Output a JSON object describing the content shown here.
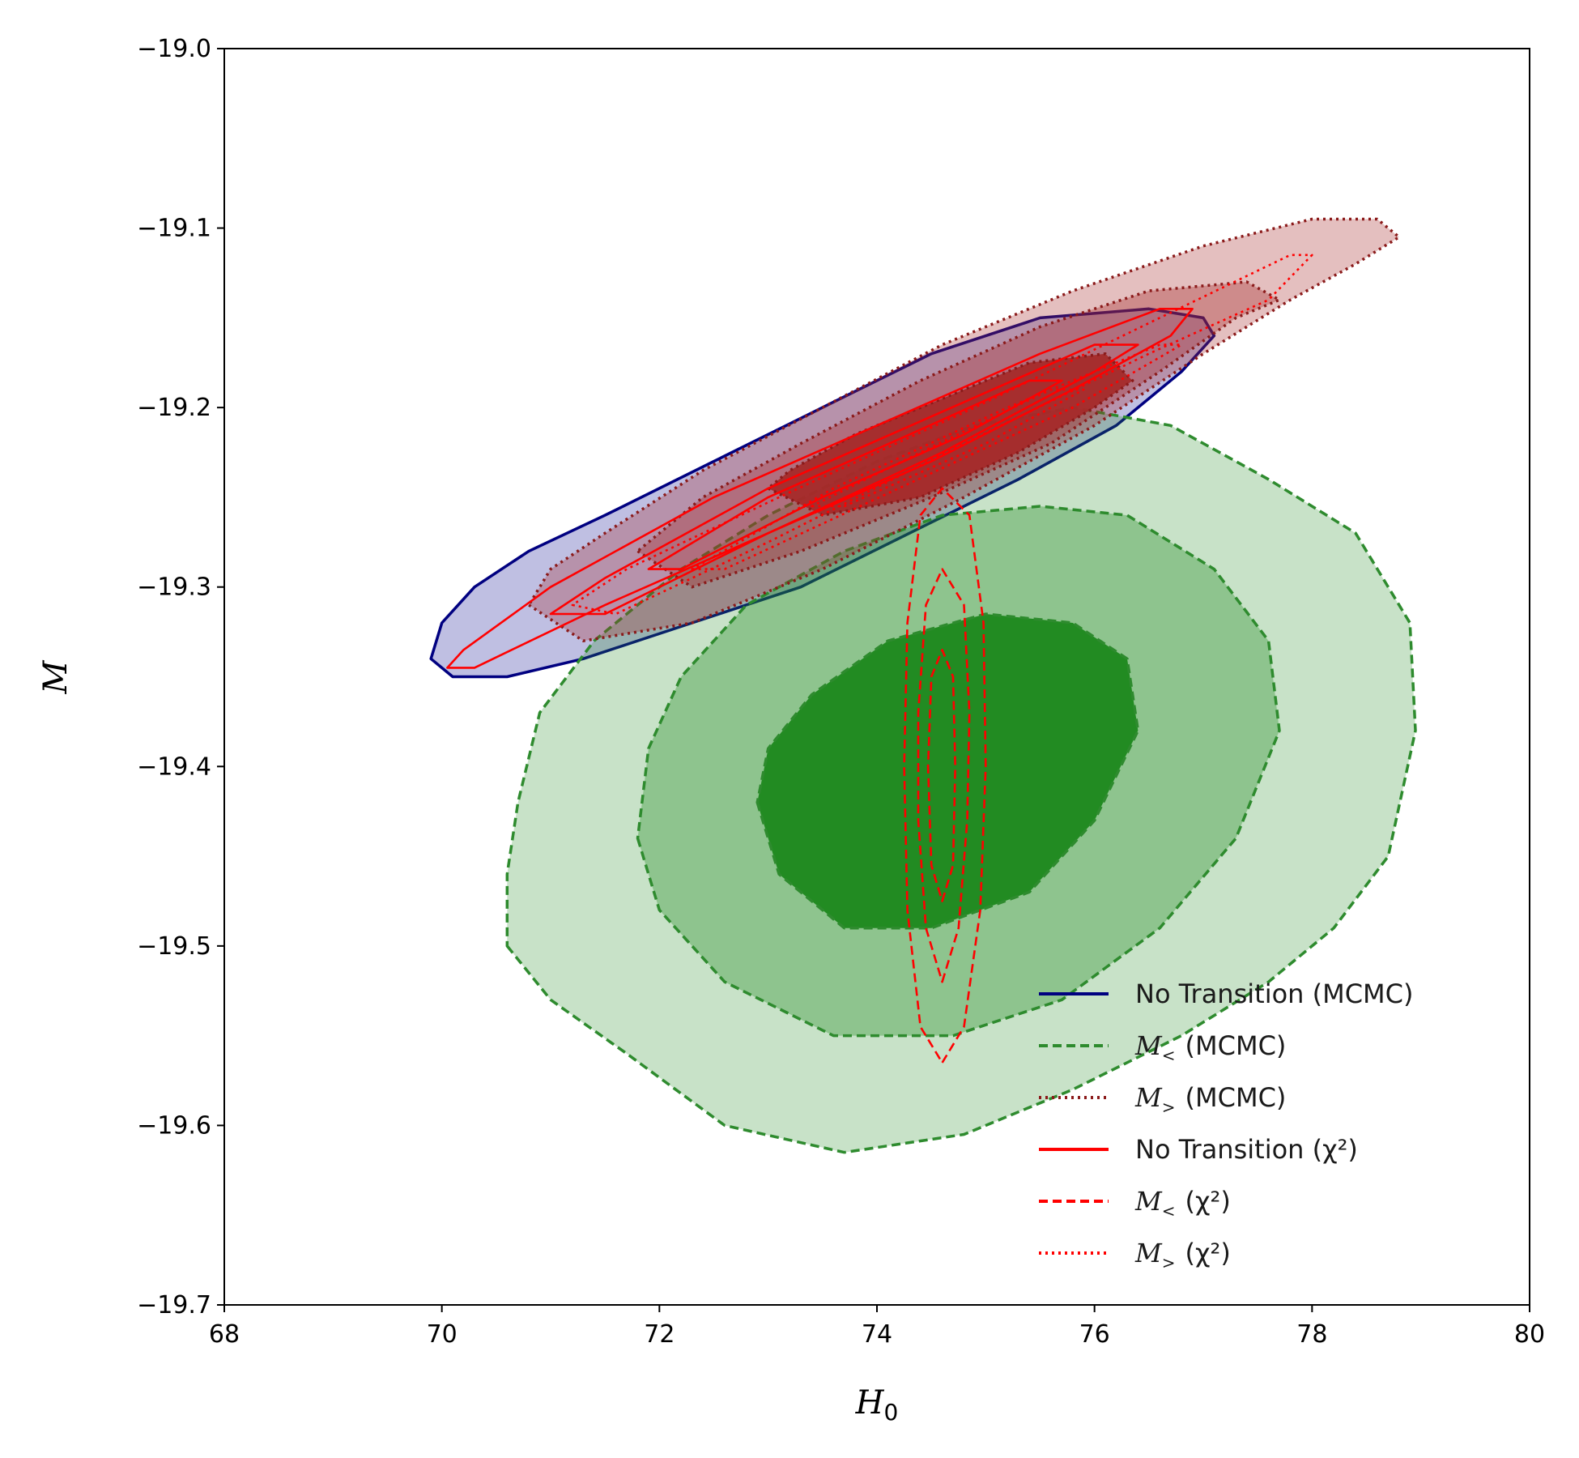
{
  "chart_data": {
    "type": "contour",
    "xlabel": "H",
    "xlabel_sub": "0",
    "ylabel": "M",
    "xlim": [
      68,
      80
    ],
    "ylim": [
      -19.7,
      -19.0
    ],
    "xticks": [
      68,
      70,
      72,
      74,
      76,
      78,
      80
    ],
    "xtick_labels": [
      "68",
      "70",
      "72",
      "74",
      "76",
      "78",
      "80"
    ],
    "yticks": [
      -19.0,
      -19.1,
      -19.2,
      -19.3,
      -19.4,
      -19.5,
      -19.6,
      -19.7
    ],
    "ytick_labels": [
      "−19.0",
      "−19.1",
      "−19.2",
      "−19.3",
      "−19.4",
      "−19.5",
      "−19.6",
      "−19.7"
    ],
    "grid": false,
    "legend_position": "lower-right",
    "series": [
      {
        "legend_symbol": "",
        "legend_sub": "",
        "legend_text": "No Transition (MCMC)",
        "line_color": "#000080",
        "fill_color": "#00008b",
        "line_style": "solid",
        "filled": true,
        "fill_opacity": [
          0.25
        ],
        "contours": [
          [
            [
              69.9,
              -19.34
            ],
            [
              70.1,
              -19.35
            ],
            [
              70.6,
              -19.35
            ],
            [
              71.3,
              -19.34
            ],
            [
              72.3,
              -19.32
            ],
            [
              73.3,
              -19.3
            ],
            [
              74.3,
              -19.27
            ],
            [
              75.3,
              -19.24
            ],
            [
              76.2,
              -19.21
            ],
            [
              76.8,
              -19.18
            ],
            [
              77.1,
              -19.16
            ],
            [
              77.0,
              -19.15
            ],
            [
              76.5,
              -19.145
            ],
            [
              75.5,
              -19.15
            ],
            [
              74.5,
              -19.17
            ],
            [
              73.5,
              -19.2
            ],
            [
              72.5,
              -19.23
            ],
            [
              71.5,
              -19.26
            ],
            [
              70.8,
              -19.28
            ],
            [
              70.3,
              -19.3
            ],
            [
              70.0,
              -19.32
            ]
          ]
        ]
      },
      {
        "legend_symbol": "M",
        "legend_sub": "<",
        "legend_text": "(MCMC)",
        "line_color": "#2e8b2e",
        "fill_color": "#228b22",
        "line_style": "dashed",
        "filled": true,
        "fill_opacity": [
          0.25,
          0.35,
          1.0
        ],
        "contours": [
          [
            [
              70.6,
              -19.5
            ],
            [
              71.0,
              -19.53
            ],
            [
              71.7,
              -19.56
            ],
            [
              72.6,
              -19.6
            ],
            [
              73.7,
              -19.615
            ],
            [
              74.8,
              -19.605
            ],
            [
              75.8,
              -19.58
            ],
            [
              76.8,
              -19.55
            ],
            [
              77.6,
              -19.52
            ],
            [
              78.2,
              -19.49
            ],
            [
              78.7,
              -19.45
            ],
            [
              78.95,
              -19.38
            ],
            [
              78.9,
              -19.32
            ],
            [
              78.4,
              -19.27
            ],
            [
              77.6,
              -19.24
            ],
            [
              76.7,
              -19.21
            ],
            [
              75.8,
              -19.2
            ],
            [
              74.9,
              -19.21
            ],
            [
              74.0,
              -19.23
            ],
            [
              73.0,
              -19.26
            ],
            [
              72.2,
              -19.29
            ],
            [
              71.4,
              -19.33
            ],
            [
              70.9,
              -19.37
            ],
            [
              70.7,
              -19.42
            ],
            [
              70.6,
              -19.46
            ]
          ],
          [
            [
              71.8,
              -19.44
            ],
            [
              72.0,
              -19.48
            ],
            [
              72.6,
              -19.52
            ],
            [
              73.6,
              -19.55
            ],
            [
              74.7,
              -19.55
            ],
            [
              75.7,
              -19.53
            ],
            [
              76.6,
              -19.49
            ],
            [
              77.3,
              -19.44
            ],
            [
              77.7,
              -19.38
            ],
            [
              77.6,
              -19.33
            ],
            [
              77.1,
              -19.29
            ],
            [
              76.3,
              -19.26
            ],
            [
              75.5,
              -19.255
            ],
            [
              74.6,
              -19.26
            ],
            [
              73.7,
              -19.28
            ],
            [
              72.8,
              -19.31
            ],
            [
              72.2,
              -19.35
            ],
            [
              71.9,
              -19.39
            ]
          ],
          [
            [
              72.9,
              -19.42
            ],
            [
              73.1,
              -19.46
            ],
            [
              73.7,
              -19.49
            ],
            [
              74.5,
              -19.49
            ],
            [
              75.4,
              -19.47
            ],
            [
              76.0,
              -19.43
            ],
            [
              76.4,
              -19.38
            ],
            [
              76.3,
              -19.34
            ],
            [
              75.8,
              -19.32
            ],
            [
              75.0,
              -19.315
            ],
            [
              74.1,
              -19.33
            ],
            [
              73.4,
              -19.36
            ],
            [
              73.0,
              -19.39
            ]
          ]
        ]
      },
      {
        "legend_symbol": "M",
        "legend_sub": ">",
        "legend_text": "(MCMC)",
        "line_color": "#8b1a1a",
        "fill_color": "#a52a2a",
        "line_style": "dotted",
        "filled": true,
        "fill_opacity": [
          0.3,
          0.35,
          0.95
        ],
        "contours": [
          [
            [
              70.8,
              -19.31
            ],
            [
              71.3,
              -19.33
            ],
            [
              72.3,
              -19.32
            ],
            [
              73.5,
              -19.29
            ],
            [
              74.8,
              -19.25
            ],
            [
              76.0,
              -19.21
            ],
            [
              77.0,
              -19.17
            ],
            [
              77.8,
              -19.14
            ],
            [
              78.4,
              -19.12
            ],
            [
              78.8,
              -19.105
            ],
            [
              78.6,
              -19.095
            ],
            [
              78.0,
              -19.095
            ],
            [
              77.0,
              -19.11
            ],
            [
              75.8,
              -19.135
            ],
            [
              74.6,
              -19.165
            ],
            [
              73.5,
              -19.2
            ],
            [
              72.4,
              -19.235
            ],
            [
              71.5,
              -19.27
            ],
            [
              71.0,
              -19.29
            ]
          ],
          [
            [
              71.8,
              -19.28
            ],
            [
              72.3,
              -19.3
            ],
            [
              73.3,
              -19.28
            ],
            [
              74.5,
              -19.25
            ],
            [
              75.6,
              -19.22
            ],
            [
              76.6,
              -19.18
            ],
            [
              77.3,
              -19.15
            ],
            [
              77.7,
              -19.14
            ],
            [
              77.4,
              -19.13
            ],
            [
              76.5,
              -19.135
            ],
            [
              75.5,
              -19.155
            ],
            [
              74.4,
              -19.185
            ],
            [
              73.3,
              -19.22
            ],
            [
              72.4,
              -19.25
            ]
          ],
          [
            [
              73.0,
              -19.245
            ],
            [
              73.5,
              -19.26
            ],
            [
              74.4,
              -19.25
            ],
            [
              75.3,
              -19.225
            ],
            [
              76.0,
              -19.2
            ],
            [
              76.35,
              -19.185
            ],
            [
              76.1,
              -19.17
            ],
            [
              75.4,
              -19.175
            ],
            [
              74.6,
              -19.195
            ],
            [
              73.8,
              -19.215
            ],
            [
              73.2,
              -19.235
            ]
          ]
        ]
      },
      {
        "legend_symbol": "",
        "legend_sub": "",
        "legend_text": "No Transition (χ²)",
        "line_color": "#ff0000",
        "fill_color": "none",
        "line_style": "solid",
        "filled": false,
        "contours": [
          [
            [
              70.05,
              -19.345
            ],
            [
              70.3,
              -19.345
            ],
            [
              71.5,
              -19.31
            ],
            [
              73.0,
              -19.27
            ],
            [
              74.5,
              -19.23
            ],
            [
              75.8,
              -19.19
            ],
            [
              76.7,
              -19.16
            ],
            [
              76.9,
              -19.145
            ],
            [
              76.6,
              -19.145
            ],
            [
              75.5,
              -19.17
            ],
            [
              74.0,
              -19.21
            ],
            [
              72.5,
              -19.25
            ],
            [
              71.0,
              -19.3
            ],
            [
              70.2,
              -19.335
            ]
          ],
          [
            [
              71.0,
              -19.315
            ],
            [
              71.5,
              -19.315
            ],
            [
              73.0,
              -19.27
            ],
            [
              74.6,
              -19.225
            ],
            [
              76.0,
              -19.18
            ],
            [
              76.4,
              -19.165
            ],
            [
              76.0,
              -19.165
            ],
            [
              74.5,
              -19.205
            ],
            [
              73.0,
              -19.245
            ],
            [
              71.5,
              -19.295
            ]
          ],
          [
            [
              71.9,
              -19.29
            ],
            [
              72.2,
              -19.29
            ],
            [
              73.5,
              -19.25
            ],
            [
              74.8,
              -19.215
            ],
            [
              75.7,
              -19.185
            ],
            [
              75.4,
              -19.185
            ],
            [
              74.3,
              -19.215
            ],
            [
              73.0,
              -19.25
            ]
          ]
        ]
      },
      {
        "legend_symbol": "M",
        "legend_sub": "<",
        "legend_text": "(χ²)",
        "line_color": "#ff0000",
        "fill_color": "none",
        "line_style": "dashed",
        "filled": false,
        "contours": [
          [
            [
              74.6,
              -19.565
            ],
            [
              74.8,
              -19.545
            ],
            [
              74.95,
              -19.48
            ],
            [
              75.0,
              -19.4
            ],
            [
              74.98,
              -19.32
            ],
            [
              74.85,
              -19.26
            ],
            [
              74.6,
              -19.245
            ],
            [
              74.4,
              -19.26
            ],
            [
              74.28,
              -19.32
            ],
            [
              74.25,
              -19.4
            ],
            [
              74.28,
              -19.48
            ],
            [
              74.4,
              -19.545
            ]
          ],
          [
            [
              74.6,
              -19.52
            ],
            [
              74.75,
              -19.49
            ],
            [
              74.83,
              -19.43
            ],
            [
              74.85,
              -19.37
            ],
            [
              74.8,
              -19.31
            ],
            [
              74.6,
              -19.29
            ],
            [
              74.45,
              -19.31
            ],
            [
              74.38,
              -19.37
            ],
            [
              74.38,
              -19.43
            ],
            [
              74.45,
              -19.49
            ]
          ],
          [
            [
              74.6,
              -19.475
            ],
            [
              74.7,
              -19.455
            ],
            [
              74.72,
              -19.4
            ],
            [
              74.7,
              -19.35
            ],
            [
              74.6,
              -19.335
            ],
            [
              74.5,
              -19.35
            ],
            [
              74.47,
              -19.4
            ],
            [
              74.5,
              -19.455
            ]
          ]
        ]
      },
      {
        "legend_symbol": "M",
        "legend_sub": ">",
        "legend_text": "(χ²)",
        "line_color": "#ff0000",
        "fill_color": "none",
        "line_style": "dotted",
        "filled": false,
        "contours": [
          [
            [
              71.2,
              -19.31
            ],
            [
              71.6,
              -19.315
            ],
            [
              73.0,
              -19.275
            ],
            [
              74.8,
              -19.22
            ],
            [
              76.5,
              -19.17
            ],
            [
              77.6,
              -19.14
            ],
            [
              78.0,
              -19.115
            ],
            [
              77.8,
              -19.115
            ],
            [
              76.6,
              -19.15
            ],
            [
              74.9,
              -19.2
            ],
            [
              73.1,
              -19.25
            ],
            [
              71.7,
              -19.29
            ]
          ],
          [
            [
              72.3,
              -19.29
            ],
            [
              72.6,
              -19.29
            ],
            [
              74.2,
              -19.245
            ],
            [
              75.8,
              -19.2
            ],
            [
              76.8,
              -19.165
            ],
            [
              76.6,
              -19.165
            ],
            [
              75.2,
              -19.2
            ],
            [
              73.6,
              -19.245
            ]
          ],
          [
            [
              73.4,
              -19.255
            ],
            [
              73.7,
              -19.255
            ],
            [
              75.0,
              -19.22
            ],
            [
              75.9,
              -19.19
            ],
            [
              75.6,
              -19.19
            ],
            [
              74.4,
              -19.225
            ]
          ]
        ]
      }
    ]
  }
}
